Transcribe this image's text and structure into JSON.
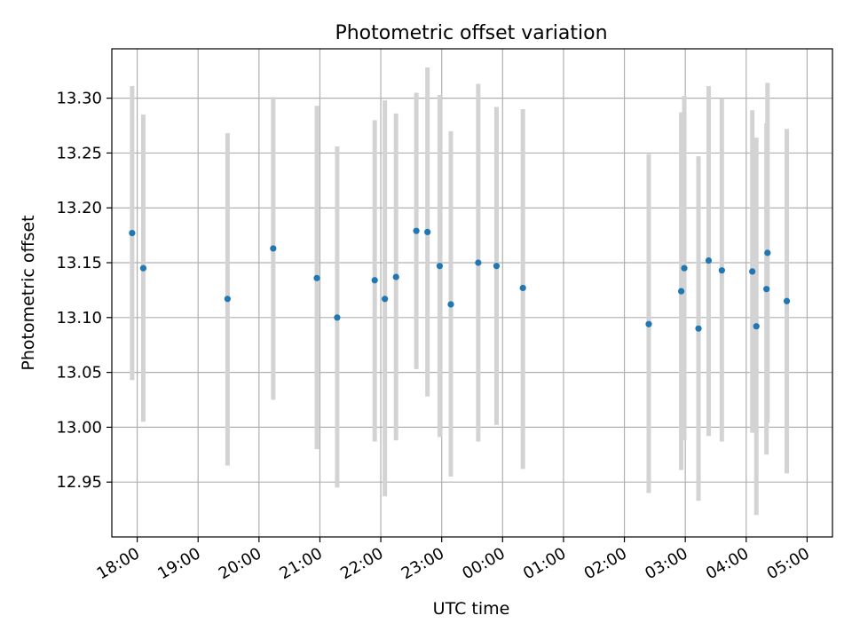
{
  "chart_data": {
    "type": "scatter",
    "title": "Photometric offset variation",
    "xlabel": "UTC time",
    "ylabel": "Photometric offset",
    "grid": true,
    "legend": "none",
    "xlim": [
      "2023-01-01T17:35",
      "2023-01-02T05:25"
    ],
    "ylim": [
      12.9,
      13.345
    ],
    "x_ticks": [
      "2023-01-01T18:00",
      "2023-01-01T19:00",
      "2023-01-01T20:00",
      "2023-01-01T21:00",
      "2023-01-01T22:00",
      "2023-01-01T23:00",
      "2023-01-02T00:00",
      "2023-01-02T01:00",
      "2023-01-02T02:00",
      "2023-01-02T03:00",
      "2023-01-02T04:00",
      "2023-01-02T05:00"
    ],
    "x_tick_labels": [
      "18:00",
      "19:00",
      "20:00",
      "21:00",
      "22:00",
      "23:00",
      "00:00",
      "01:00",
      "02:00",
      "03:00",
      "04:00",
      "05:00"
    ],
    "y_ticks": [
      12.95,
      13.0,
      13.05,
      13.1,
      13.15,
      13.2,
      13.25,
      13.3
    ],
    "y_tick_labels": [
      "12.95",
      "13.00",
      "13.05",
      "13.10",
      "13.15",
      "13.20",
      "13.25",
      "13.30"
    ],
    "point_color": "#1f77b4",
    "errorbar_color": "#d3d3d3",
    "points": [
      {
        "x": "2023-01-01T17:55",
        "y": 13.177,
        "ylow": 13.043,
        "yhigh": 13.311
      },
      {
        "x": "2023-01-01T18:06",
        "y": 13.145,
        "ylow": 13.005,
        "yhigh": 13.285
      },
      {
        "x": "2023-01-01T19:29",
        "y": 13.117,
        "ylow": 12.965,
        "yhigh": 13.268
      },
      {
        "x": "2023-01-01T20:14",
        "y": 13.163,
        "ylow": 13.025,
        "yhigh": 13.301
      },
      {
        "x": "2023-01-01T20:57",
        "y": 13.136,
        "ylow": 12.98,
        "yhigh": 13.293
      },
      {
        "x": "2023-01-01T21:17",
        "y": 13.1,
        "ylow": 12.945,
        "yhigh": 13.256
      },
      {
        "x": "2023-01-01T21:54",
        "y": 13.134,
        "ylow": 12.987,
        "yhigh": 13.28
      },
      {
        "x": "2023-01-01T22:04",
        "y": 13.117,
        "ylow": 12.937,
        "yhigh": 13.298
      },
      {
        "x": "2023-01-01T22:15",
        "y": 13.137,
        "ylow": 12.988,
        "yhigh": 13.286
      },
      {
        "x": "2023-01-01T22:35",
        "y": 13.179,
        "ylow": 13.053,
        "yhigh": 13.305
      },
      {
        "x": "2023-01-01T22:46",
        "y": 13.178,
        "ylow": 13.028,
        "yhigh": 13.328
      },
      {
        "x": "2023-01-01T22:58",
        "y": 13.147,
        "ylow": 12.991,
        "yhigh": 13.303
      },
      {
        "x": "2023-01-01T23:09",
        "y": 13.112,
        "ylow": 12.955,
        "yhigh": 13.27
      },
      {
        "x": "2023-01-01T23:36",
        "y": 13.15,
        "ylow": 12.987,
        "yhigh": 13.313
      },
      {
        "x": "2023-01-01T23:54",
        "y": 13.147,
        "ylow": 13.002,
        "yhigh": 13.292
      },
      {
        "x": "2023-01-02T00:20",
        "y": 13.127,
        "ylow": 12.962,
        "yhigh": 13.29
      },
      {
        "x": "2023-01-02T02:24",
        "y": 13.094,
        "ylow": 12.94,
        "yhigh": 13.249
      },
      {
        "x": "2023-01-02T02:56",
        "y": 13.124,
        "ylow": 12.961,
        "yhigh": 13.287
      },
      {
        "x": "2023-01-02T02:59",
        "y": 13.145,
        "ylow": 12.988,
        "yhigh": 13.302
      },
      {
        "x": "2023-01-02T03:13",
        "y": 13.09,
        "ylow": 12.933,
        "yhigh": 13.247
      },
      {
        "x": "2023-01-02T03:23",
        "y": 13.152,
        "ylow": 12.992,
        "yhigh": 13.311
      },
      {
        "x": "2023-01-02T03:36",
        "y": 13.143,
        "ylow": 12.987,
        "yhigh": 13.3
      },
      {
        "x": "2023-01-02T04:06",
        "y": 13.142,
        "ylow": 12.995,
        "yhigh": 13.289
      },
      {
        "x": "2023-01-02T04:10",
        "y": 13.092,
        "ylow": 12.92,
        "yhigh": 13.264
      },
      {
        "x": "2023-01-02T04:20",
        "y": 13.126,
        "ylow": 12.975,
        "yhigh": 13.277
      },
      {
        "x": "2023-01-02T04:21",
        "y": 13.159,
        "ylow": 13.004,
        "yhigh": 13.314
      },
      {
        "x": "2023-01-02T04:40",
        "y": 13.115,
        "ylow": 12.958,
        "yhigh": 13.272
      }
    ]
  }
}
